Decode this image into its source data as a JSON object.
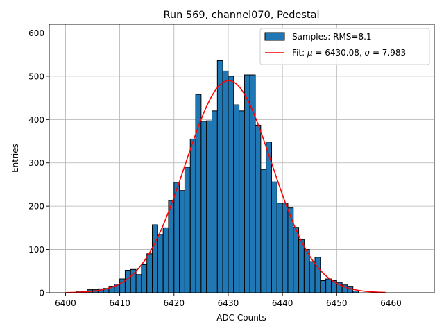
{
  "chart_data": {
    "type": "bar",
    "title": "Run 569, channel070, Pedestal",
    "xlabel": "ADC Counts",
    "ylabel": "Entries",
    "xlim": [
      6397,
      6468
    ],
    "ylim": [
      0,
      620
    ],
    "xticks": [
      6400,
      6410,
      6420,
      6430,
      6440,
      6450,
      6460
    ],
    "yticks": [
      0,
      100,
      200,
      300,
      400,
      500,
      600
    ],
    "grid": true,
    "legend_position": "top-right",
    "bin_width": 1,
    "series": [
      {
        "name": "Samples: RMS=8.1",
        "kind": "histogram",
        "color": "#1f77b4",
        "edgecolor": "#000000",
        "bins": [
          6402,
          6403,
          6404,
          6405,
          6406,
          6407,
          6408,
          6409,
          6410,
          6411,
          6412,
          6413,
          6414,
          6415,
          6416,
          6417,
          6418,
          6419,
          6420,
          6421,
          6422,
          6423,
          6424,
          6425,
          6426,
          6427,
          6428,
          6429,
          6430,
          6431,
          6432,
          6433,
          6434,
          6435,
          6436,
          6437,
          6438,
          6439,
          6440,
          6441,
          6442,
          6443,
          6444,
          6445,
          6446,
          6447,
          6448,
          6449,
          6450,
          6451,
          6452,
          6453
        ],
        "values": [
          4,
          3,
          7,
          7,
          9,
          10,
          15,
          20,
          32,
          52,
          54,
          42,
          65,
          90,
          157,
          135,
          150,
          213,
          255,
          236,
          290,
          355,
          458,
          396,
          397,
          420,
          536,
          512,
          500,
          434,
          420,
          503,
          503,
          387,
          285,
          348,
          256,
          207,
          207,
          196,
          151,
          123,
          100,
          72,
          82,
          28,
          32,
          28,
          24,
          18,
          15,
          4
        ]
      },
      {
        "name": "Fit: $\\mu$ = 6430.08, $\\sigma$ = 7.983",
        "kind": "gaussian-fit",
        "color": "#ff0000",
        "mu": 6430.08,
        "sigma": 7.983,
        "amplitude": 490,
        "x_range": [
          6400,
          6459
        ]
      }
    ]
  },
  "legend": {
    "samples_label": "Samples: RMS=8.1",
    "fit_prefix": "Fit: ",
    "mu_symbol": "μ",
    "mu_text": " = 6430.08, ",
    "sigma_symbol": "σ",
    "sigma_text": " = 7.983"
  }
}
